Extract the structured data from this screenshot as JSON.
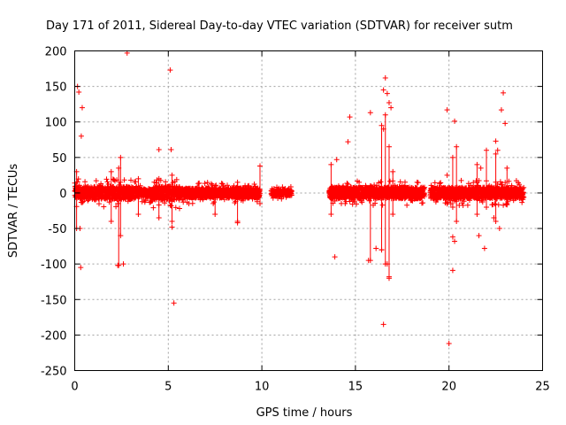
{
  "chart_data": {
    "type": "scatter",
    "title": "Day 171 of 2011, Sidereal Day-to-day VTEC variation (SDTVAR) for receiver sutm",
    "xlabel": "GPS time / hours",
    "ylabel": "SDTVAR / TECUs",
    "xlim": [
      0,
      25
    ],
    "ylim": [
      -250,
      200
    ],
    "xticks": [
      0,
      5,
      10,
      15,
      20,
      25
    ],
    "yticks": [
      -250,
      -200,
      -150,
      -100,
      -50,
      0,
      50,
      100,
      150,
      200
    ],
    "grid": true,
    "marker": "+",
    "color": "#ff0000",
    "series": [
      {
        "name": "SDTVAR",
        "band_segments": [
          {
            "x0": 0.0,
            "x1": 3.3,
            "amp": 9
          },
          {
            "x0": 3.3,
            "x1": 4.2,
            "amp": 6
          },
          {
            "x0": 4.2,
            "x1": 5.6,
            "amp": 10
          },
          {
            "x0": 5.6,
            "x1": 9.9,
            "amp": 7
          },
          {
            "x0": 10.5,
            "x1": 11.6,
            "amp": 4
          },
          {
            "x0": 13.6,
            "x1": 18.7,
            "amp": 8
          },
          {
            "x0": 19.0,
            "x1": 24.0,
            "amp": 8
          }
        ],
        "spikes": [
          {
            "x": 0.1,
            "ymin": -50,
            "ymax": 30
          },
          {
            "x": 1.95,
            "ymin": -40,
            "ymax": 30
          },
          {
            "x": 2.35,
            "ymin": -102,
            "ymax": 35
          },
          {
            "x": 2.45,
            "ymin": -60,
            "ymax": 50
          },
          {
            "x": 3.4,
            "ymin": -30,
            "ymax": 20
          },
          {
            "x": 4.5,
            "ymin": -35,
            "ymax": 20
          },
          {
            "x": 5.2,
            "ymin": -40,
            "ymax": 25
          },
          {
            "x": 7.5,
            "ymin": -30,
            "ymax": 10
          },
          {
            "x": 8.7,
            "ymin": -40,
            "ymax": 15
          },
          {
            "x": 9.9,
            "ymin": -15,
            "ymax": 38
          },
          {
            "x": 13.7,
            "ymin": -30,
            "ymax": 40
          },
          {
            "x": 15.8,
            "ymin": -95,
            "ymax": 10
          },
          {
            "x": 16.4,
            "ymin": -80,
            "ymax": 95
          },
          {
            "x": 16.6,
            "ymin": -100,
            "ymax": 110
          },
          {
            "x": 16.8,
            "ymin": -120,
            "ymax": 65
          },
          {
            "x": 17.0,
            "ymin": -30,
            "ymax": 30
          },
          {
            "x": 20.2,
            "ymin": -20,
            "ymax": 50
          },
          {
            "x": 20.4,
            "ymin": -40,
            "ymax": 65
          },
          {
            "x": 21.5,
            "ymin": -30,
            "ymax": 40
          },
          {
            "x": 22.0,
            "ymin": -20,
            "ymax": 60
          },
          {
            "x": 22.5,
            "ymin": -40,
            "ymax": 55
          },
          {
            "x": 23.1,
            "ymin": -15,
            "ymax": 35
          }
        ],
        "outliers": [
          {
            "x": 0.15,
            "y": 150
          },
          {
            "x": 0.22,
            "y": 142
          },
          {
            "x": 0.4,
            "y": 120
          },
          {
            "x": 0.35,
            "y": 80
          },
          {
            "x": 0.28,
            "y": -50
          },
          {
            "x": 0.32,
            "y": -105
          },
          {
            "x": 2.3,
            "y": -102
          },
          {
            "x": 2.6,
            "y": -100
          },
          {
            "x": 2.8,
            "y": 197
          },
          {
            "x": 4.5,
            "y": 61
          },
          {
            "x": 5.1,
            "y": 173
          },
          {
            "x": 5.15,
            "y": 61
          },
          {
            "x": 5.2,
            "y": -48
          },
          {
            "x": 5.3,
            "y": -155
          },
          {
            "x": 8.7,
            "y": -42
          },
          {
            "x": 13.9,
            "y": -90
          },
          {
            "x": 14.0,
            "y": 47
          },
          {
            "x": 14.6,
            "y": 72
          },
          {
            "x": 14.7,
            "y": 107
          },
          {
            "x": 15.8,
            "y": 113
          },
          {
            "x": 15.7,
            "y": -95
          },
          {
            "x": 16.1,
            "y": -78
          },
          {
            "x": 16.4,
            "y": -80
          },
          {
            "x": 16.5,
            "y": -185
          },
          {
            "x": 16.6,
            "y": 162
          },
          {
            "x": 16.5,
            "y": 145
          },
          {
            "x": 16.7,
            "y": 140
          },
          {
            "x": 16.8,
            "y": 127
          },
          {
            "x": 16.9,
            "y": 120
          },
          {
            "x": 16.7,
            "y": -100
          },
          {
            "x": 16.8,
            "y": -118
          },
          {
            "x": 16.5,
            "y": 90
          },
          {
            "x": 19.9,
            "y": 117
          },
          {
            "x": 19.9,
            "y": 25
          },
          {
            "x": 20.0,
            "y": -212
          },
          {
            "x": 20.2,
            "y": -109
          },
          {
            "x": 20.3,
            "y": -68
          },
          {
            "x": 20.2,
            "y": -62
          },
          {
            "x": 20.3,
            "y": 101
          },
          {
            "x": 21.6,
            "y": -60
          },
          {
            "x": 21.9,
            "y": -78
          },
          {
            "x": 21.7,
            "y": 35
          },
          {
            "x": 22.5,
            "y": 73
          },
          {
            "x": 22.6,
            "y": 60
          },
          {
            "x": 22.8,
            "y": 117
          },
          {
            "x": 22.9,
            "y": 141
          },
          {
            "x": 23.0,
            "y": 98
          },
          {
            "x": 22.7,
            "y": -50
          },
          {
            "x": 22.4,
            "y": -35
          }
        ]
      }
    ]
  }
}
